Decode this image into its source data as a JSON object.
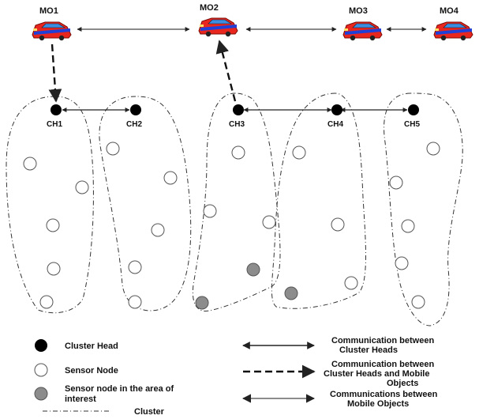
{
  "mobile_objects": [
    {
      "label": "MO1"
    },
    {
      "label": "MO2"
    },
    {
      "label": "MO3"
    },
    {
      "label": "MO4"
    }
  ],
  "cluster_heads": [
    {
      "label": "CH1"
    },
    {
      "label": "CH2"
    },
    {
      "label": "CH3"
    },
    {
      "label": "CH4"
    },
    {
      "label": "CH5"
    }
  ],
  "legend": {
    "cluster_head": "Cluster Head",
    "sensor_node": "Sensor Node",
    "sensor_interest": [
      "Sensor node in the area of",
      "interest"
    ],
    "cluster": "Cluster",
    "comm_cluster_heads": [
      "Communication between",
      "Cluster Heads"
    ],
    "comm_ch_mo": [
      "Communication between",
      "Cluster Heads and Mobile",
      "Objects"
    ],
    "comm_mobile_objects": [
      "Communications between",
      "Mobile Objects"
    ]
  },
  "colors": {
    "vehicle_body": "#e8261e",
    "vehicle_stripe": "#1f3fd6",
    "vehicle_window": "#3a8de0",
    "sensor_interest": "#8c8c8c",
    "cluster_head": "#000000",
    "line": "#222222"
  }
}
